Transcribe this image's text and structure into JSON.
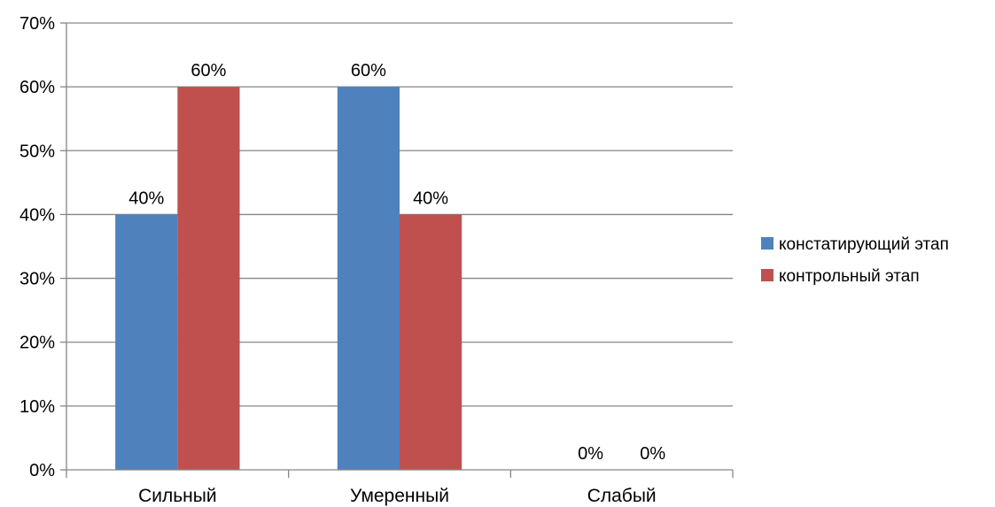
{
  "chart_data": {
    "type": "bar",
    "title": "",
    "xlabel": "",
    "ylabel": "",
    "categories": [
      "Сильный",
      "Умеренный",
      "Слабый"
    ],
    "series": [
      {
        "name": "констатирующий этап",
        "values": [
          0.4,
          0.6,
          0
        ],
        "labels": [
          "40%",
          "60%",
          "0%"
        ],
        "color": "#4F81BD"
      },
      {
        "name": "контрольный этап",
        "values": [
          0.6,
          0.4,
          0
        ],
        "labels": [
          "60%",
          "40%",
          "0%"
        ],
        "color": "#C0504D"
      }
    ],
    "ylim": [
      0,
      0.7
    ],
    "yticks": [
      0,
      0.1,
      0.2,
      0.3,
      0.4,
      0.5,
      0.6,
      0.7
    ],
    "ytick_labels": [
      "0%",
      "10%",
      "20%",
      "30%",
      "40%",
      "50%",
      "60%",
      "70%"
    ],
    "grid": true,
    "legend_position": "right",
    "grid_color": "#868686",
    "axis_color": "#868686"
  }
}
